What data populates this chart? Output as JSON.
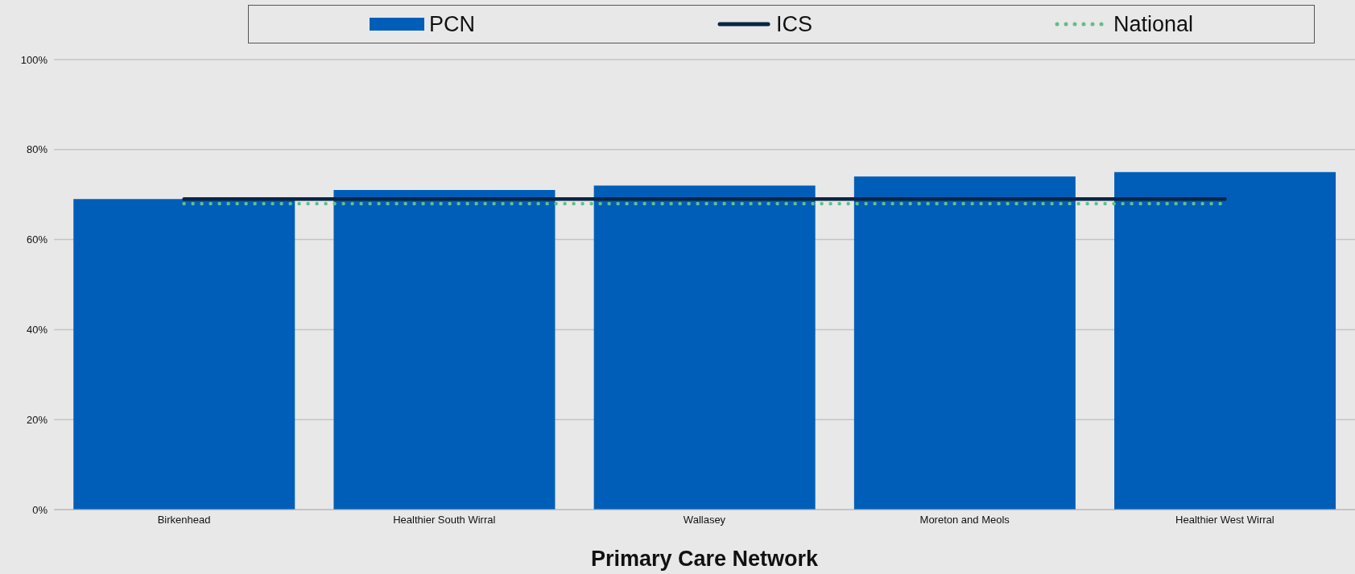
{
  "chart_data": {
    "type": "bar",
    "xlabel": "Primary Care Network",
    "categories": [
      "Birkenhead",
      "Healthier South Wirral",
      "Wallasey",
      "Moreton and Meols",
      "Healthier West Wirral"
    ],
    "series": [
      {
        "name": "PCN",
        "color": "#005eb8",
        "values": [
          69,
          71,
          72,
          74,
          75
        ]
      },
      {
        "name": "ICS",
        "type": "line",
        "color": "#0b2545",
        "line_style": "solid",
        "values": [
          69,
          69,
          69,
          69,
          69
        ]
      },
      {
        "name": "National",
        "type": "line",
        "color": "#5ec08a",
        "line_style": "dotted",
        "values": [
          68,
          68,
          68,
          68,
          68
        ]
      }
    ],
    "ylim": [
      0,
      100
    ],
    "yticks": [
      {
        "value": 0,
        "label": "0%"
      },
      {
        "value": 20,
        "label": "20%"
      },
      {
        "value": 40,
        "label": "40%"
      },
      {
        "value": 60,
        "label": "60%"
      },
      {
        "value": 80,
        "label": "80%"
      },
      {
        "value": 100,
        "label": "100%"
      }
    ],
    "grid": "y",
    "legend": "top",
    "marker": "none"
  }
}
